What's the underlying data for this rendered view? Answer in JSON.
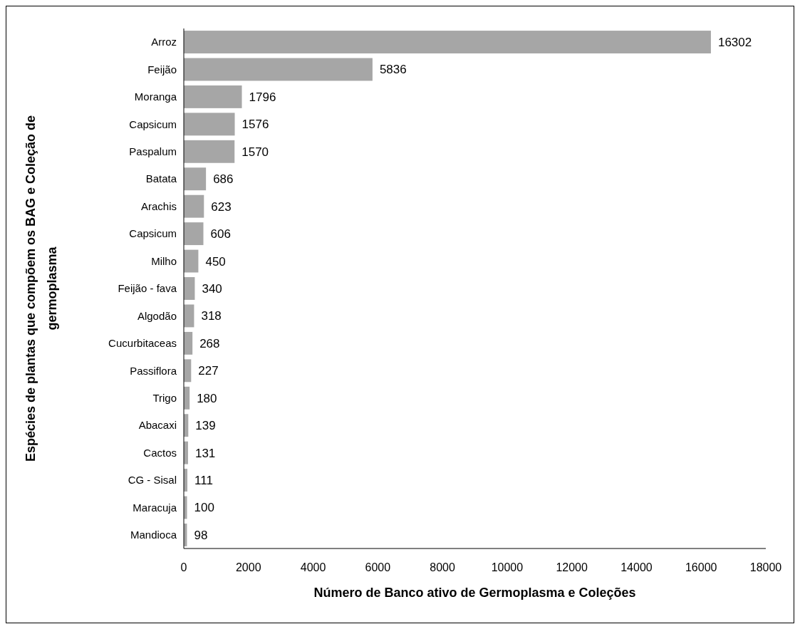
{
  "chart_data": {
    "type": "bar",
    "orientation": "horizontal",
    "xlabel": "Número de Banco ativo de Germoplasma e Coleções",
    "ylabel": "Espécies de plantas que compõem os BAG e Coleção de germoplasma",
    "categories": [
      "Arroz",
      "Feijão",
      "Moranga",
      "Capsicum",
      "Paspalum",
      "Batata",
      "Arachis",
      "Capsicum",
      "Milho",
      "Feijão - fava",
      "Algodão",
      "Cucurbitaceas",
      "Passiflora",
      "Trigo",
      "Abacaxi",
      "Cactos",
      "CG - Sisal",
      "Maracuja",
      "Mandioca"
    ],
    "values": [
      16302,
      5836,
      1796,
      1576,
      1570,
      686,
      623,
      606,
      450,
      340,
      318,
      268,
      227,
      180,
      139,
      131,
      111,
      100,
      98
    ],
    "color": "#a6a6a6",
    "xlim": [
      0,
      18000
    ],
    "xticks": [
      0,
      2000,
      4000,
      6000,
      8000,
      10000,
      12000,
      14000,
      16000,
      18000
    ],
    "data_labels": true,
    "grid": false
  }
}
